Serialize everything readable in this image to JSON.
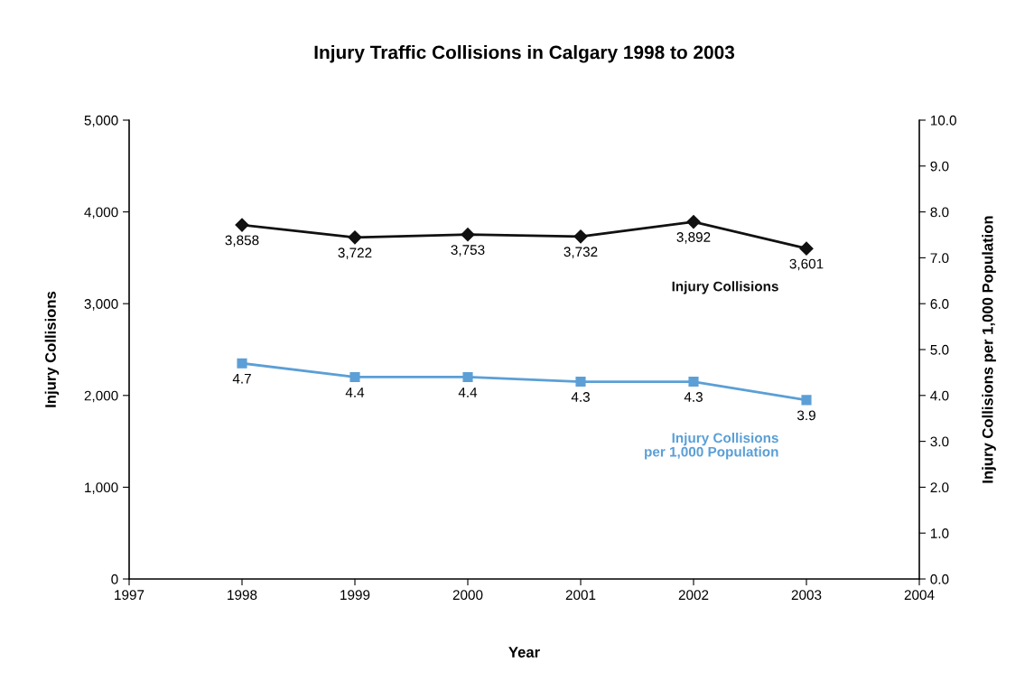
{
  "chart_data": {
    "type": "line",
    "title": "Injury Traffic Collisions in Calgary 1998 to 2003",
    "xlabel": "Year",
    "ylabel": "Injury Collisions",
    "y2label": "Injury Collisions per 1,000 Population",
    "x": [
      1998,
      1999,
      2000,
      2001,
      2002,
      2003
    ],
    "series": [
      {
        "name": "Injury Collisions",
        "color": "#111111",
        "values": [
          3858,
          3722,
          3753,
          3732,
          3892,
          3601
        ],
        "value_labels": [
          "3,858",
          "3,722",
          "3,753",
          "3,732",
          "3,892",
          "3,601"
        ],
        "marker": "diamond"
      },
      {
        "name": "Injury Collisions per 1,000 Population",
        "color": "#5b9fd6",
        "values": [
          4.7,
          4.4,
          4.4,
          4.3,
          4.3,
          3.9
        ],
        "value_labels": [
          "4.7",
          "4.4",
          "4.4",
          "4.3",
          "4.3",
          "3.9"
        ],
        "marker": "square",
        "axis": "y2"
      }
    ],
    "xlim": [
      1997,
      2004
    ],
    "xticks": [
      1997,
      1998,
      1999,
      2000,
      2001,
      2002,
      2003,
      2004
    ],
    "ylim": [
      0,
      5000
    ],
    "yticks": [
      {
        "value": 0,
        "label": "0"
      },
      {
        "value": 1000,
        "label": "1,000"
      },
      {
        "value": 2000,
        "label": "2,000"
      },
      {
        "value": 3000,
        "label": "3,000"
      },
      {
        "value": 4000,
        "label": "4,000"
      },
      {
        "value": 5000,
        "label": "5,000"
      }
    ],
    "y2lim": [
      0,
      10
    ],
    "y2ticks": [
      {
        "value": 0,
        "label": "0.0"
      },
      {
        "value": 1,
        "label": "1.0"
      },
      {
        "value": 2,
        "label": "2.0"
      },
      {
        "value": 3,
        "label": "3.0"
      },
      {
        "value": 4,
        "label": "4.0"
      },
      {
        "value": 5,
        "label": "5.0"
      },
      {
        "value": 6,
        "label": "6.0"
      },
      {
        "value": 7,
        "label": "7.0"
      },
      {
        "value": 8,
        "label": "8.0"
      },
      {
        "value": 9,
        "label": "9.0"
      },
      {
        "value": 10,
        "label": "10.0"
      }
    ],
    "grid": false,
    "legend": false,
    "line_style": "solid"
  }
}
